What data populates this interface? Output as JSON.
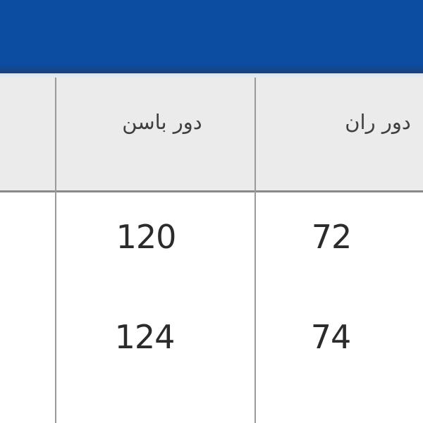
{
  "appbar": {
    "color": "#0c4da2"
  },
  "table": {
    "header": {
      "col_hip": "دور باسن",
      "col_thigh": "دور ران"
    },
    "rows": [
      {
        "hip": "120",
        "thigh": "72"
      },
      {
        "hip": "124",
        "thigh": "74"
      }
    ]
  },
  "colors": {
    "appbar_blue": "#0c4da2",
    "appbar_edge": "#1a4078",
    "divider_light": "#d9e4f2",
    "header_bg": "#ebebeb",
    "grid_line": "#9a9a9a",
    "header_border": "#8a8a8a",
    "header_text": "#3f3f3f",
    "cell_text": "#2b2b2b"
  }
}
